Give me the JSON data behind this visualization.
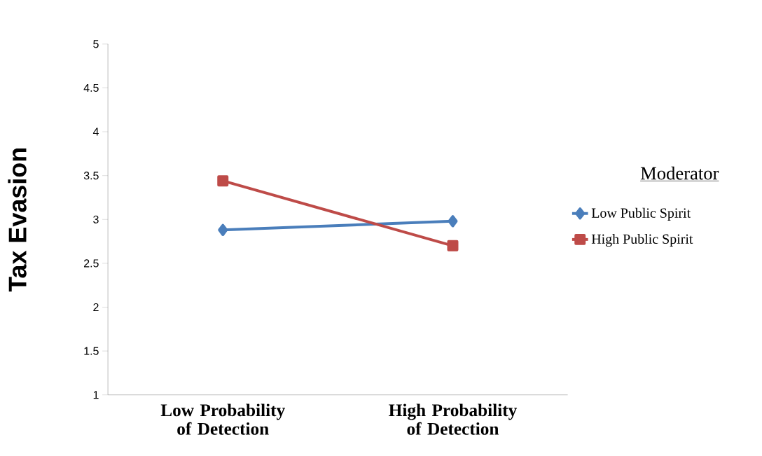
{
  "chart_data": {
    "type": "line",
    "ylabel": "Tax Evasion",
    "legend_title": "Moderator",
    "legend": "right",
    "grid": false,
    "categories": [
      "Low Probability of Detection",
      "High Probability of Detection"
    ],
    "ylim": [
      1,
      5
    ],
    "yticks": [
      1,
      1.5,
      2,
      2.5,
      3,
      3.5,
      4,
      4.5,
      5
    ],
    "series": [
      {
        "name": "Low Public Spirit",
        "color": "#4a7ebb",
        "values": [
          2.88,
          2.98
        ],
        "marker": "diamond"
      },
      {
        "name": "High Public Spirit",
        "color": "#be4b48",
        "values": [
          3.44,
          2.7
        ],
        "marker": "square"
      }
    ]
  }
}
